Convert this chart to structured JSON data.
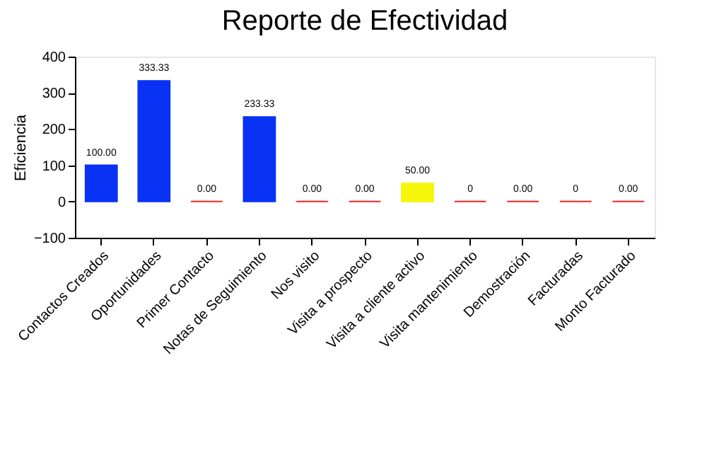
{
  "chart_data": {
    "type": "bar",
    "title": "Reporte de Efectividad",
    "ylabel": "Eficiencia",
    "categories": [
      "Contactos Creados",
      "Oportunidades",
      "Primer Contacto",
      "Notas de Seguimiento",
      "Nos visito",
      "Visita a prospecto",
      "Visita a cliente activo",
      "Visita mantenimiento",
      "Demostración",
      "Facturadas",
      "Monto Facturado"
    ],
    "values": [
      100,
      333.33,
      0,
      233.33,
      0,
      0,
      50,
      0,
      0,
      0,
      0
    ],
    "colors": [
      "#0a32f5",
      "#0a32f5",
      "#ff2020",
      "#0a32f5",
      "#ff2020",
      "#ff2020",
      "#f5f50a",
      "#ff2020",
      "#ff2020",
      "#ff2020",
      "#ff2020"
    ],
    "value_labels": [
      "100.00",
      "333.33",
      "0.00",
      "233.33",
      "0.00",
      "0.00",
      "50.00",
      "0",
      "0.00",
      "0",
      "0.00"
    ],
    "ylim": [
      -100,
      400
    ],
    "yticks": [
      -100,
      0,
      100,
      200,
      300,
      400
    ],
    "grid": false
  }
}
